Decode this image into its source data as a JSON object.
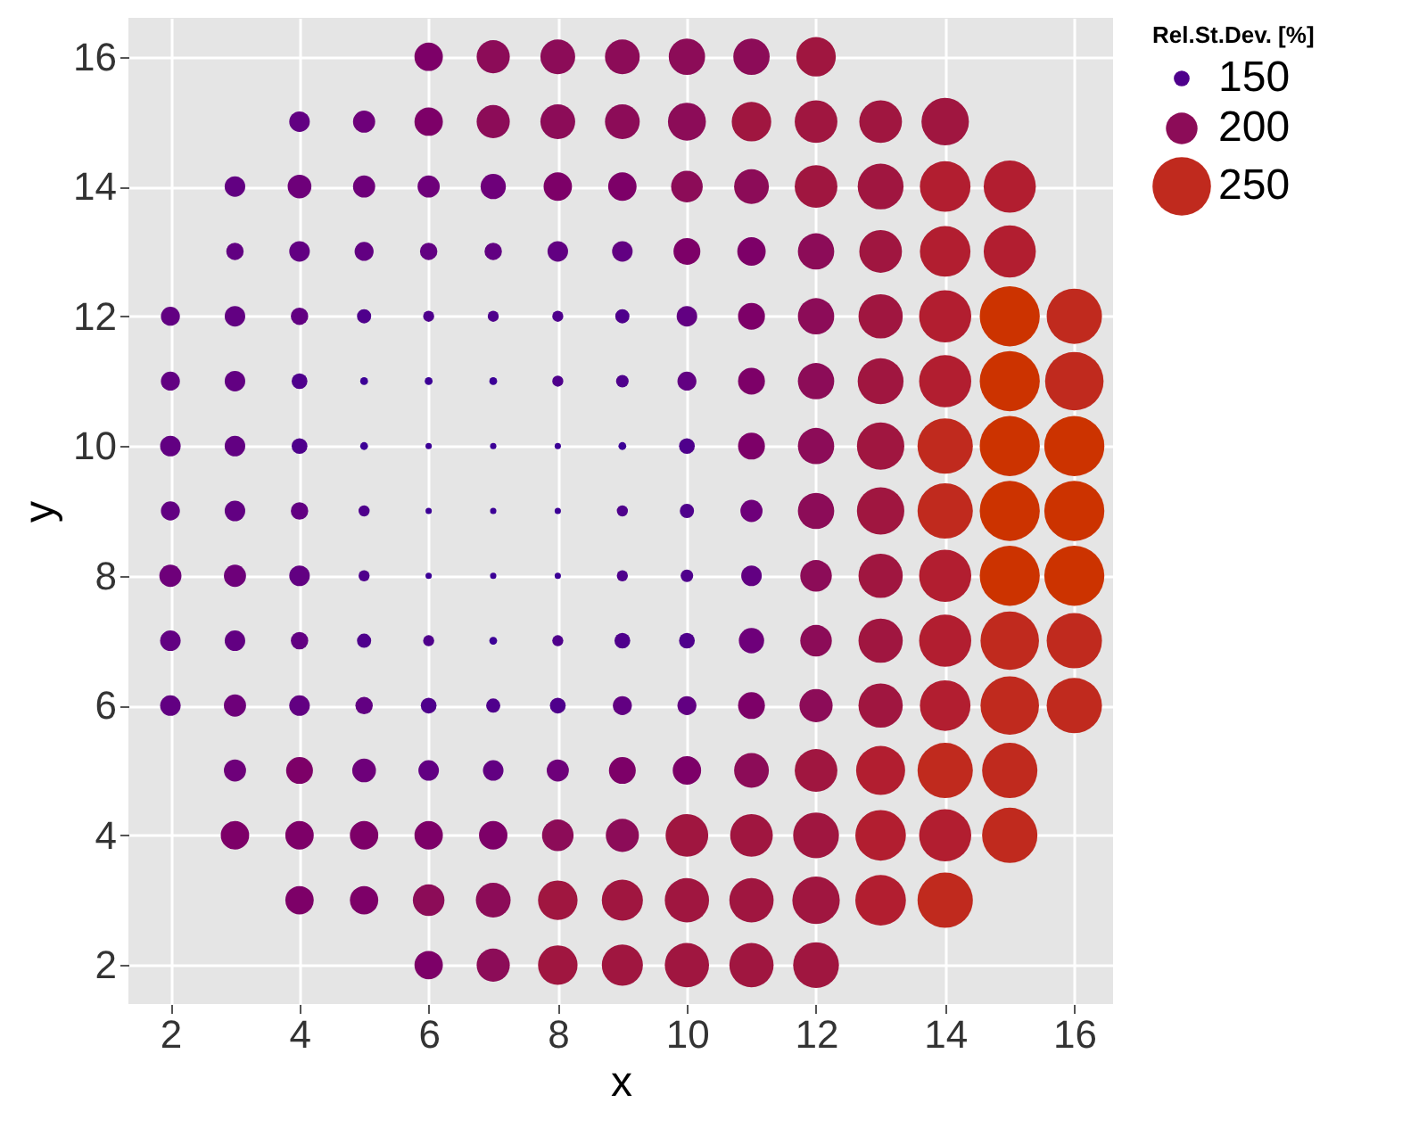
{
  "chart_data": {
    "type": "bubble",
    "xlabel": "x",
    "ylabel": "y",
    "legend_title": "Rel.St.Dev. [%]",
    "grid": true,
    "marker": "circle",
    "xlim": [
      1.35,
      16.6
    ],
    "ylim": [
      1.4,
      16.6
    ],
    "xticks": [
      2,
      4,
      6,
      8,
      10,
      12,
      14,
      16
    ],
    "yticks": [
      2,
      4,
      6,
      8,
      10,
      12,
      14,
      16
    ],
    "size_legend": [
      {
        "value": 0.069,
        "label": "150"
      },
      {
        "value": 0.277,
        "label": "200"
      },
      {
        "value": 0.948,
        "label": "250"
      }
    ],
    "series": [
      {
        "x": [
          6,
          7,
          8,
          9,
          10,
          11,
          12
        ],
        "values": [
          16,
          16,
          16,
          16,
          16,
          16,
          16
        ],
        "sizes": [
          0.224,
          0.305,
          0.335,
          0.335,
          0.366,
          0.366,
          0.433
        ],
        "colors": [
          "#7d0068",
          "#8c0c58",
          "#8c0c58",
          "#8c0c58",
          "#8c0c58",
          "#8c0c58",
          "#a01640"
        ]
      },
      {
        "x": [
          4,
          5,
          6,
          7,
          8,
          9,
          10,
          11,
          12,
          13,
          14
        ],
        "values": [
          15,
          15,
          15,
          15,
          15,
          15,
          15,
          15,
          15,
          15,
          15
        ],
        "sizes": [
          0.117,
          0.136,
          0.224,
          0.305,
          0.335,
          0.335,
          0.399,
          0.433,
          0.505,
          0.505,
          0.623
        ],
        "colors": [
          "#620082",
          "#6e007a",
          "#7d0068",
          "#8c0c58",
          "#8c0c58",
          "#8c0c58",
          "#8c0c58",
          "#a01640",
          "#a01640",
          "#a01640",
          "#a01640"
        ]
      },
      {
        "x": [
          3,
          4,
          5,
          6,
          7,
          8,
          9,
          10,
          11,
          12,
          13,
          14,
          15
        ],
        "values": [
          14,
          14,
          14,
          14,
          14,
          14,
          14,
          14,
          14,
          14,
          14,
          14,
          14
        ],
        "sizes": [
          0.117,
          0.156,
          0.136,
          0.136,
          0.177,
          0.224,
          0.224,
          0.277,
          0.335,
          0.505,
          0.582,
          0.709,
          0.754
        ],
        "colors": [
          "#620082",
          "#6e007a",
          "#6e007a",
          "#6e007a",
          "#6e007a",
          "#7d0068",
          "#7d0068",
          "#8c0c58",
          "#8c0c58",
          "#a01640",
          "#a01640",
          "#b21e30",
          "#b21e30"
        ]
      },
      {
        "x": [
          3,
          4,
          5,
          6,
          7,
          8,
          9,
          10,
          11,
          12,
          13,
          14,
          15
        ],
        "values": [
          13,
          13,
          13,
          13,
          13,
          13,
          13,
          13,
          13,
          13,
          13,
          13,
          13
        ],
        "sizes": [
          0.084,
          0.117,
          0.1,
          0.084,
          0.084,
          0.117,
          0.117,
          0.2,
          0.224,
          0.366,
          0.505,
          0.709,
          0.754
        ],
        "colors": [
          "#620082",
          "#620082",
          "#620082",
          "#620082",
          "#620082",
          "#620082",
          "#620082",
          "#7d0068",
          "#7d0068",
          "#8c0c58",
          "#a01640",
          "#b21e30",
          "#b21e30"
        ]
      },
      {
        "x": [
          2,
          3,
          4,
          5,
          6,
          7,
          8,
          9,
          10,
          11,
          12,
          13,
          14,
          15,
          16
        ],
        "values": [
          12,
          12,
          12,
          12,
          12,
          12,
          12,
          12,
          12,
          12,
          12,
          12,
          12,
          12,
          12
        ],
        "sizes": [
          0.1,
          0.117,
          0.084,
          0.056,
          0.034,
          0.034,
          0.034,
          0.056,
          0.117,
          0.2,
          0.366,
          0.543,
          0.754,
          1,
          0.848
        ],
        "colors": [
          "#620082",
          "#620082",
          "#620082",
          "#4f008c",
          "#4f008c",
          "#4f008c",
          "#4f008c",
          "#4f008c",
          "#620082",
          "#7d0068",
          "#8c0c58",
          "#a01640",
          "#b21e30",
          "#cc3300",
          "#c02a1e"
        ]
      },
      {
        "x": [
          2,
          3,
          4,
          5,
          6,
          7,
          8,
          9,
          10,
          11,
          12,
          13,
          14,
          15,
          16
        ],
        "values": [
          11,
          11,
          11,
          11,
          11,
          11,
          11,
          11,
          11,
          11,
          11,
          11,
          11,
          11,
          11
        ],
        "sizes": [
          0.1,
          0.117,
          0.069,
          0.017,
          0.017,
          0.017,
          0.034,
          0.044,
          0.1,
          0.2,
          0.366,
          0.582,
          0.754,
          1,
          0.948
        ],
        "colors": [
          "#620082",
          "#620082",
          "#4f008c",
          "#3c0096",
          "#3c0096",
          "#3c0096",
          "#4f008c",
          "#4f008c",
          "#620082",
          "#7d0068",
          "#8c0c58",
          "#a01640",
          "#b21e30",
          "#cc3300",
          "#c02a1e"
        ]
      },
      {
        "x": [
          2,
          3,
          4,
          5,
          6,
          7,
          8,
          9,
          10,
          11,
          12,
          13,
          14,
          15,
          16
        ],
        "values": [
          10,
          10,
          10,
          10,
          10,
          10,
          10,
          10,
          10,
          10,
          10,
          10,
          10,
          10,
          10
        ],
        "sizes": [
          0.117,
          0.117,
          0.069,
          0.017,
          0.011,
          0.011,
          0.011,
          0.017,
          0.069,
          0.2,
          0.366,
          0.623,
          0.848,
          1,
          1
        ],
        "colors": [
          "#620082",
          "#620082",
          "#4f008c",
          "#3c0096",
          "#3c0096",
          "#3c0096",
          "#3c0096",
          "#3c0096",
          "#4f008c",
          "#7d0068",
          "#8c0c58",
          "#a01640",
          "#c02a1e",
          "#cc3300",
          "#cc3300"
        ]
      },
      {
        "x": [
          2,
          3,
          4,
          5,
          6,
          7,
          8,
          9,
          10,
          11,
          12,
          13,
          14,
          15,
          16
        ],
        "values": [
          9,
          9,
          9,
          9,
          9,
          9,
          9,
          9,
          9,
          9,
          9,
          9,
          9,
          9,
          9
        ],
        "sizes": [
          0.1,
          0.117,
          0.084,
          0.034,
          0.011,
          0.011,
          0.011,
          0.034,
          0.056,
          0.136,
          0.366,
          0.623,
          0.848,
          1,
          1
        ],
        "colors": [
          "#620082",
          "#620082",
          "#620082",
          "#4f008c",
          "#3c0096",
          "#3c0096",
          "#3c0096",
          "#4f008c",
          "#4f008c",
          "#6e007a",
          "#8c0c58",
          "#a01640",
          "#c02a1e",
          "#cc3300",
          "#cc3300"
        ]
      },
      {
        "x": [
          2,
          3,
          4,
          5,
          6,
          7,
          8,
          9,
          10,
          11,
          12,
          13,
          14,
          15,
          16
        ],
        "values": [
          8,
          8,
          8,
          8,
          8,
          8,
          8,
          8,
          8,
          8,
          8,
          8,
          8,
          8,
          8
        ],
        "sizes": [
          0.136,
          0.136,
          0.117,
          0.034,
          0.011,
          0.011,
          0.011,
          0.034,
          0.044,
          0.117,
          0.277,
          0.543,
          0.754,
          1,
          1
        ],
        "colors": [
          "#6e007a",
          "#6e007a",
          "#620082",
          "#4f008c",
          "#3c0096",
          "#3c0096",
          "#3c0096",
          "#4f008c",
          "#4f008c",
          "#620082",
          "#8c0c58",
          "#a01640",
          "#b21e30",
          "#cc3300",
          "#cc3300"
        ]
      },
      {
        "x": [
          2,
          3,
          4,
          5,
          6,
          7,
          8,
          9,
          10,
          11,
          12,
          13,
          14,
          15,
          16
        ],
        "values": [
          7,
          7,
          7,
          7,
          7,
          7,
          7,
          7,
          7,
          7,
          7,
          7,
          7,
          7,
          7
        ],
        "sizes": [
          0.117,
          0.117,
          0.084,
          0.056,
          0.034,
          0.017,
          0.034,
          0.069,
          0.069,
          0.177,
          0.277,
          0.543,
          0.754,
          0.948,
          0.848
        ],
        "colors": [
          "#620082",
          "#620082",
          "#620082",
          "#4f008c",
          "#4f008c",
          "#3c0096",
          "#4f008c",
          "#4f008c",
          "#4f008c",
          "#6e007a",
          "#8c0c58",
          "#a01640",
          "#b21e30",
          "#c02a1e",
          "#c02a1e"
        ]
      },
      {
        "x": [
          2,
          3,
          4,
          5,
          6,
          7,
          8,
          9,
          10,
          11,
          12,
          13,
          14,
          15,
          16
        ],
        "values": [
          6,
          6,
          6,
          6,
          6,
          6,
          6,
          6,
          6,
          6,
          6,
          6,
          6,
          6,
          6
        ],
        "sizes": [
          0.117,
          0.136,
          0.117,
          0.084,
          0.069,
          0.056,
          0.069,
          0.1,
          0.1,
          0.2,
          0.305,
          0.543,
          0.709,
          0.948,
          0.848
        ],
        "colors": [
          "#620082",
          "#6e007a",
          "#620082",
          "#620082",
          "#4f008c",
          "#4f008c",
          "#4f008c",
          "#620082",
          "#620082",
          "#7d0068",
          "#8c0c58",
          "#a01640",
          "#b21e30",
          "#c02a1e",
          "#c02a1e"
        ]
      },
      {
        "x": [
          3,
          4,
          5,
          6,
          7,
          8,
          9,
          10,
          11,
          12,
          13,
          14,
          15
        ],
        "values": [
          5,
          5,
          5,
          5,
          5,
          5,
          5,
          5,
          5,
          5,
          5,
          5,
          5
        ],
        "sizes": [
          0.136,
          0.2,
          0.156,
          0.117,
          0.117,
          0.136,
          0.2,
          0.224,
          0.335,
          0.505,
          0.666,
          0.848,
          0.848
        ],
        "colors": [
          "#6e007a",
          "#7d0068",
          "#6e007a",
          "#620082",
          "#620082",
          "#6e007a",
          "#7d0068",
          "#7d0068",
          "#8c0c58",
          "#a01640",
          "#b21e30",
          "#c02a1e",
          "#c02a1e"
        ]
      },
      {
        "x": [
          3,
          4,
          5,
          6,
          7,
          8,
          9,
          10,
          11,
          12,
          13,
          14,
          15
        ],
        "values": [
          4,
          4,
          4,
          4,
          4,
          4,
          4,
          4,
          4,
          4,
          4,
          4,
          4
        ],
        "sizes": [
          0.224,
          0.224,
          0.224,
          0.224,
          0.224,
          0.277,
          0.305,
          0.505,
          0.505,
          0.582,
          0.709,
          0.754,
          0.848
        ],
        "colors": [
          "#7d0068",
          "#7d0068",
          "#7d0068",
          "#7d0068",
          "#7d0068",
          "#8c0c58",
          "#8c0c58",
          "#a01640",
          "#a01640",
          "#a01640",
          "#b21e30",
          "#b21e30",
          "#c02a1e"
        ]
      },
      {
        "x": [
          4,
          5,
          6,
          7,
          8,
          9,
          10,
          11,
          12,
          13,
          14
        ],
        "values": [
          3,
          3,
          3,
          3,
          3,
          3,
          3,
          3,
          3,
          3,
          3
        ],
        "sizes": [
          0.224,
          0.224,
          0.277,
          0.335,
          0.433,
          0.468,
          0.543,
          0.543,
          0.623,
          0.709,
          0.848
        ],
        "colors": [
          "#7d0068",
          "#7d0068",
          "#8c0c58",
          "#8c0c58",
          "#a01640",
          "#a01640",
          "#a01640",
          "#a01640",
          "#a01640",
          "#b21e30",
          "#c02a1e"
        ]
      },
      {
        "x": [
          6,
          7,
          8,
          9,
          10,
          11,
          12
        ],
        "values": [
          2,
          2,
          2,
          2,
          2,
          2,
          2
        ],
        "sizes": [
          0.224,
          0.305,
          0.433,
          0.468,
          0.543,
          0.543,
          0.582
        ],
        "colors": [
          "#7d0068",
          "#8c0c58",
          "#a01640",
          "#a01640",
          "#a01640",
          "#a01640",
          "#a01640"
        ]
      }
    ]
  }
}
